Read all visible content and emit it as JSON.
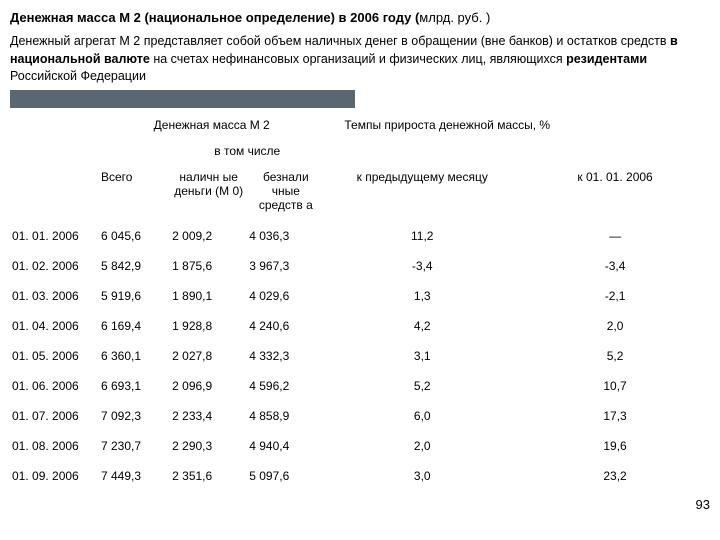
{
  "title_parts": {
    "a": "Денежная масса М 2 (национальное определение) в 2006 году (",
    "b": "млрд. руб. )"
  },
  "desc": {
    "p1a": "Денежный агрегат М 2 представляет собой объем наличных денег в обращении (вне банков) и остатков средств ",
    "p1b": "в национальной валюте ",
    "p1c": "на счетах нефинансовых организаций и физических лиц, являющихся ",
    "p1d": "резидентами ",
    "p1e": "Российской Федерации"
  },
  "headers": {
    "m2": "Денежная масса М 2",
    "growth": "Темпы прироста денежной массы, %",
    "vtom": "в том числе",
    "vsego": "Всего",
    "cash": "наличн ые деньги (М 0)",
    "noncash": "безнали чные средств а",
    "prev": "к предыдущему месяцу",
    "to0101": "к 01. 01. 2006"
  },
  "rows": [
    {
      "d": "01. 01. 2006",
      "v1": "6 045,6",
      "v2": "2 009,2",
      "v3": "4 036,3",
      "g1": "11,2",
      "g2": "—"
    },
    {
      "d": "01. 02. 2006",
      "v1": "5 842,9",
      "v2": "1 875,6",
      "v3": "3 967,3",
      "g1": "-3,4",
      "g2": "-3,4"
    },
    {
      "d": "01. 03. 2006",
      "v1": "5 919,6",
      "v2": "1 890,1",
      "v3": "4 029,6",
      "g1": "1,3",
      "g2": "-2,1"
    },
    {
      "d": "01. 04. 2006",
      "v1": "6 169,4",
      "v2": "1 928,8",
      "v3": "4 240,6",
      "g1": "4,2",
      "g2": "2,0"
    },
    {
      "d": "01. 05. 2006",
      "v1": "6 360,1",
      "v2": "2 027,8",
      "v3": "4 332,3",
      "g1": "3,1",
      "g2": "5,2"
    },
    {
      "d": "01. 06. 2006",
      "v1": "6 693,1",
      "v2": "2 096,9",
      "v3": "4 596,2",
      "g1": "5,2",
      "g2": "10,7"
    },
    {
      "d": "01. 07. 2006",
      "v1": "7 092,3",
      "v2": "2 233,4",
      "v3": "4 858,9",
      "g1": "6,0",
      "g2": "17,3"
    },
    {
      "d": "01. 08. 2006",
      "v1": "7 230,7",
      "v2": "2 290,3",
      "v3": "4 940,4",
      "g1": "2,0",
      "g2": "19,6"
    },
    {
      "d": "01. 09. 2006",
      "v1": "7 449,3",
      "v2": "2 351,6",
      "v3": "5 097,6",
      "g1": "3,0",
      "g2": "23,2"
    }
  ],
  "page_number": "93"
}
